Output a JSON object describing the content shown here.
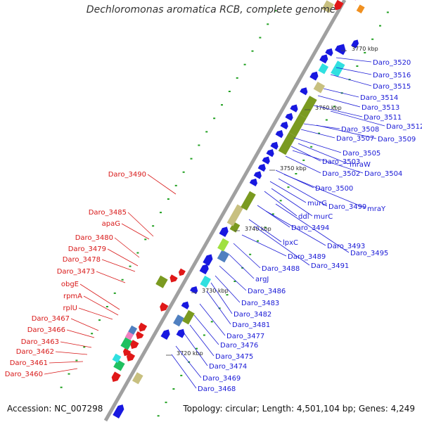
{
  "title": "Dechloromonas aromatica RCB, complete genome",
  "accession": "Accession: NC_007298",
  "summary": "Topology: circular; Length: 4,501,104 bp; Genes: 4,249",
  "colors": {
    "backbone": "#a0a0a0",
    "blue_gene": "#1818e0",
    "red_gene": "#e01818",
    "olive": "#7a9a20",
    "khaki": "#c8c080",
    "cyan": "#30e0e0",
    "green": "#20c060",
    "steel": "#5080c0",
    "pink": "#f080c0",
    "orange": "#f09020",
    "lime": "#a0e040",
    "label_blue": "#1a1ad6",
    "label_red": "#d81818"
  },
  "ticks": [
    "3720 kbp",
    "3730 kbp",
    "3740 kbp",
    "3750 kbp",
    "3760 kbp",
    "3770 kbp"
  ],
  "labels_right": [
    "Daro_3520",
    "Daro_3516",
    "Daro_3515",
    "Daro_3514",
    "Daro_3513",
    "Daro_3511",
    "Daro_3512",
    "Daro_3508",
    "Daro_3507",
    "Daro_3509",
    "Daro_3505",
    "Daro_3503",
    "mraW",
    "Daro_3502",
    "Daro_3504",
    "Daro_3500",
    "murG",
    "Daro_3499",
    "mraY",
    "ddl",
    "murC",
    "Daro_3494",
    "lpxC",
    "Daro_3493",
    "Daro_3495",
    "Daro_3489",
    "Daro_3491",
    "Daro_3488",
    "argJ",
    "Daro_3486",
    "Daro_3483",
    "Daro_3482",
    "Daro_3481",
    "Daro_3477",
    "Daro_3476",
    "Daro_3475",
    "Daro_3474",
    "Daro_3469",
    "Daro_3468"
  ],
  "labels_left": [
    "Daro_3490",
    "Daro_3485",
    "apaG",
    "Daro_3480",
    "Daro_3479",
    "Daro_3478",
    "Daro_3473",
    "obgE",
    "rpmA",
    "rplU",
    "Daro_3467",
    "Daro_3466",
    "Daro_3463",
    "Daro_3462",
    "Daro_3461",
    "Daro_3460"
  ]
}
